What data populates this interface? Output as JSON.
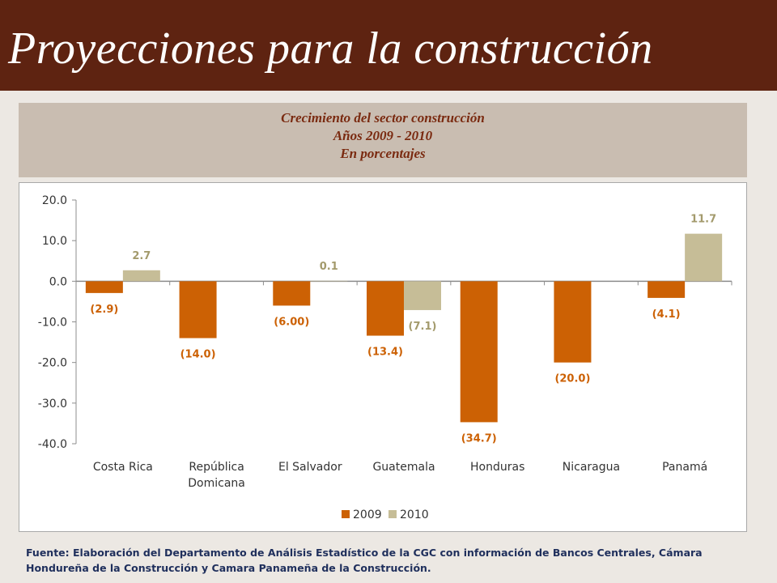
{
  "slide": {
    "title": "Proyecciones para la construcción"
  },
  "chart_header": {
    "line1": "Crecimiento del sector construcción",
    "line2": "Años 2009 - 2010",
    "line3": "En porcentajes"
  },
  "source": "Fuente:  Elaboración del Departamento de Análisis Estadístico de la CGC con información de Bancos Centrales, Cámara Hondureña de la Construcción y Camara Panameña de la Construcción.",
  "colors": {
    "title_bar": "#5e2311",
    "series_2009": "#cc6104",
    "series_2010": "#c6bd97",
    "label_2009": "#cc6104",
    "label_2010": "#a39a6c"
  },
  "chart_data": {
    "type": "bar",
    "categories": [
      "Costa Rica",
      "República Domicana",
      "El Salvador",
      "Guatemala",
      "Honduras",
      "Nicaragua",
      "Panamá"
    ],
    "category_lines": [
      [
        "Costa Rica"
      ],
      [
        "República",
        "Domicana"
      ],
      [
        "El Salvador"
      ],
      [
        "Guatemala"
      ],
      [
        "Honduras"
      ],
      [
        "Nicaragua"
      ],
      [
        "Panamá"
      ]
    ],
    "series": [
      {
        "name": "2009",
        "values": [
          -2.9,
          -14.0,
          -6.0,
          -13.4,
          -34.7,
          -20.0,
          -4.1
        ],
        "labels": [
          "(2.9)",
          "(14.0)",
          "(6.00)",
          "(13.4)",
          "(34.7)",
          "(20.0)",
          "(4.1)"
        ]
      },
      {
        "name": "2010",
        "values": [
          2.7,
          null,
          0.1,
          -7.1,
          null,
          null,
          11.7
        ],
        "labels": [
          "2.7",
          null,
          "0.1",
          "(7.1)",
          null,
          null,
          "11.7"
        ]
      }
    ],
    "ylim": [
      -40,
      20
    ],
    "yticks": [
      "20.0",
      "10.0",
      "0.0",
      "-10.0",
      "-20.0",
      "-30.0",
      "-40.0"
    ],
    "ytick_values": [
      20,
      10,
      0,
      -10,
      -20,
      -30,
      -40
    ],
    "legend": "bottom-center",
    "grid": false
  }
}
